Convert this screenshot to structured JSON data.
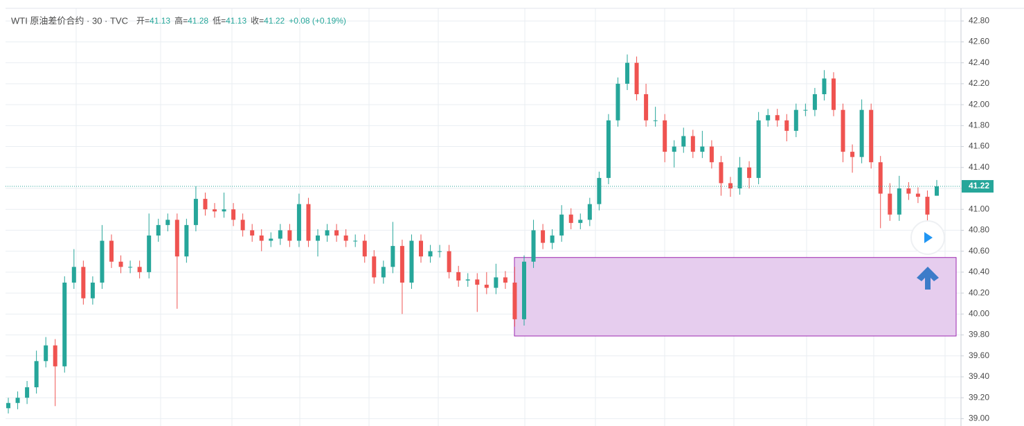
{
  "chart_data": {
    "type": "candlestick",
    "title": "WTI 原油差价合约 · 30 · TVC",
    "legend": [
      {
        "label": "开=",
        "value": 41.13
      },
      {
        "label": "高=",
        "value": 41.28
      },
      {
        "label": "低=",
        "value": 41.13
      },
      {
        "label": "收=",
        "value": 41.22
      }
    ],
    "change": "+0.08 (+0.19%)",
    "up_color": "#26a69a",
    "down_color": "#ef5350",
    "last_price": 41.22,
    "zone": {
      "low": 39.79,
      "high": 40.54,
      "color": "#e6cdee"
    },
    "ylim": [
      38.93,
      43.0
    ],
    "yticks": [
      {
        "value": 39,
        "label": "39.00"
      },
      {
        "value": 39.2,
        "label": "39.20"
      },
      {
        "value": 39.4,
        "label": "39.40"
      },
      {
        "value": 39.6,
        "label": "39.60"
      },
      {
        "value": 39.8,
        "label": "39.80"
      },
      {
        "value": 40,
        "label": "40.00"
      },
      {
        "value": 40.2,
        "label": "40.20"
      },
      {
        "value": 40.4,
        "label": "40.40"
      },
      {
        "value": 40.6,
        "label": "40.60"
      },
      {
        "value": 40.8,
        "label": "40.80"
      },
      {
        "value": 41,
        "label": "41.00"
      },
      {
        "value": 41.2,
        "label": "41.20"
      },
      {
        "value": 41.4,
        "label": "41.40"
      },
      {
        "value": 41.6,
        "label": "41.60"
      },
      {
        "value": 41.8,
        "label": "41.80"
      },
      {
        "value": 42,
        "label": "42.00"
      },
      {
        "value": 42.2,
        "label": "42.20"
      },
      {
        "value": 42.4,
        "label": "42.40"
      },
      {
        "value": 42.6,
        "label": "42.60"
      },
      {
        "value": 42.8,
        "label": "42.80"
      }
    ],
    "grid": true,
    "ohlc": [
      [
        39.1,
        39.2,
        39.05,
        39.15
      ],
      [
        39.15,
        39.26,
        39.09,
        39.2
      ],
      [
        39.2,
        39.36,
        39.14,
        39.3
      ],
      [
        39.3,
        39.65,
        39.24,
        39.55
      ],
      [
        39.55,
        39.78,
        39.49,
        39.7
      ],
      [
        39.7,
        39.76,
        39.12,
        39.5
      ],
      [
        39.5,
        40.36,
        39.44,
        40.3
      ],
      [
        40.3,
        40.62,
        40.24,
        40.45
      ],
      [
        40.45,
        40.51,
        40.09,
        40.15
      ],
      [
        40.15,
        40.36,
        40.09,
        40.3
      ],
      [
        40.3,
        40.85,
        40.24,
        40.7
      ],
      [
        40.7,
        40.76,
        40.44,
        40.5
      ],
      [
        40.5,
        40.56,
        40.39,
        40.45
      ],
      [
        40.45,
        40.51,
        40.39,
        40.45
      ],
      [
        40.45,
        40.51,
        40.34,
        40.4
      ],
      [
        40.4,
        40.96,
        40.34,
        40.75
      ],
      [
        40.75,
        40.91,
        40.69,
        40.85
      ],
      [
        40.85,
        40.96,
        40.79,
        40.9
      ],
      [
        40.9,
        40.96,
        40.05,
        40.55
      ],
      [
        40.55,
        40.91,
        40.49,
        40.85
      ],
      [
        40.85,
        41.22,
        40.79,
        41.1
      ],
      [
        41.1,
        41.16,
        40.94,
        41.0
      ],
      [
        41.0,
        41.06,
        40.92,
        40.98
      ],
      [
        40.98,
        41.16,
        40.92,
        41.0
      ],
      [
        41.0,
        41.06,
        40.84,
        40.9
      ],
      [
        40.9,
        40.96,
        40.74,
        40.8
      ],
      [
        40.8,
        40.86,
        40.69,
        40.75
      ],
      [
        40.75,
        40.81,
        40.6,
        40.7
      ],
      [
        40.7,
        40.78,
        40.64,
        40.72
      ],
      [
        40.72,
        40.86,
        40.66,
        40.8
      ],
      [
        40.8,
        40.86,
        40.64,
        40.7
      ],
      [
        40.7,
        41.15,
        40.64,
        41.05
      ],
      [
        41.05,
        41.11,
        40.64,
        40.7
      ],
      [
        40.7,
        40.81,
        40.55,
        40.75
      ],
      [
        40.75,
        40.86,
        40.69,
        40.8
      ],
      [
        40.8,
        40.86,
        40.69,
        40.75
      ],
      [
        40.75,
        40.81,
        40.64,
        40.7
      ],
      [
        40.7,
        40.76,
        40.64,
        40.7
      ],
      [
        40.7,
        40.76,
        40.49,
        40.55
      ],
      [
        40.55,
        40.61,
        40.29,
        40.35
      ],
      [
        40.35,
        40.51,
        40.29,
        40.45
      ],
      [
        40.45,
        40.88,
        40.39,
        40.65
      ],
      [
        40.65,
        40.71,
        40.0,
        40.3
      ],
      [
        40.3,
        40.76,
        40.24,
        40.7
      ],
      [
        40.7,
        40.76,
        40.49,
        40.55
      ],
      [
        40.55,
        40.66,
        40.49,
        40.6
      ],
      [
        40.6,
        40.66,
        40.54,
        40.6
      ],
      [
        40.6,
        40.66,
        40.34,
        40.4
      ],
      [
        40.4,
        40.46,
        40.26,
        40.32
      ],
      [
        40.32,
        40.39,
        40.26,
        40.33
      ],
      [
        40.33,
        40.39,
        40.02,
        40.28
      ],
      [
        40.28,
        40.4,
        40.19,
        40.25
      ],
      [
        40.25,
        40.48,
        40.19,
        40.35
      ],
      [
        40.35,
        40.41,
        40.24,
        40.3
      ],
      [
        40.3,
        40.45,
        39.88,
        39.95
      ],
      [
        39.95,
        40.56,
        39.89,
        40.5
      ],
      [
        40.5,
        40.9,
        40.44,
        40.8
      ],
      [
        40.8,
        40.86,
        40.62,
        40.68
      ],
      [
        40.68,
        40.81,
        40.62,
        40.75
      ],
      [
        40.75,
        41.04,
        40.69,
        40.95
      ],
      [
        40.95,
        41.01,
        40.81,
        40.87
      ],
      [
        40.87,
        40.96,
        40.81,
        40.9
      ],
      [
        40.9,
        41.11,
        40.84,
        41.05
      ],
      [
        41.05,
        41.36,
        40.99,
        41.3
      ],
      [
        41.3,
        41.91,
        41.24,
        41.85
      ],
      [
        41.85,
        42.26,
        41.79,
        42.2
      ],
      [
        42.2,
        42.48,
        42.14,
        42.4
      ],
      [
        42.4,
        42.46,
        42.04,
        42.1
      ],
      [
        42.1,
        42.2,
        41.79,
        41.85
      ],
      [
        41.85,
        41.98,
        41.79,
        41.85
      ],
      [
        41.85,
        41.91,
        41.45,
        41.55
      ],
      [
        41.55,
        41.66,
        41.4,
        41.6
      ],
      [
        41.6,
        41.78,
        41.54,
        41.7
      ],
      [
        41.7,
        41.76,
        41.49,
        41.55
      ],
      [
        41.55,
        41.75,
        41.49,
        41.6
      ],
      [
        41.6,
        41.66,
        41.39,
        41.45
      ],
      [
        41.45,
        41.51,
        41.13,
        41.25
      ],
      [
        41.25,
        41.31,
        41.12,
        41.2
      ],
      [
        41.2,
        41.5,
        41.14,
        41.4
      ],
      [
        41.4,
        41.46,
        41.2,
        41.3
      ],
      [
        41.3,
        41.93,
        41.24,
        41.85
      ],
      [
        41.85,
        41.96,
        41.79,
        41.9
      ],
      [
        41.9,
        41.96,
        41.79,
        41.85
      ],
      [
        41.85,
        41.91,
        41.65,
        41.75
      ],
      [
        41.75,
        42.01,
        41.69,
        41.95
      ],
      [
        41.95,
        42.01,
        41.89,
        41.95
      ],
      [
        41.95,
        42.16,
        41.89,
        42.1
      ],
      [
        42.1,
        42.33,
        42.04,
        42.25
      ],
      [
        42.25,
        42.31,
        41.89,
        41.95
      ],
      [
        41.95,
        42.01,
        41.45,
        41.55
      ],
      [
        41.55,
        41.62,
        41.35,
        41.5
      ],
      [
        41.5,
        42.05,
        41.44,
        41.95
      ],
      [
        41.95,
        42.01,
        41.39,
        41.45
      ],
      [
        41.45,
        41.51,
        40.82,
        41.15
      ],
      [
        41.15,
        41.25,
        40.89,
        40.95
      ],
      [
        40.95,
        41.32,
        40.89,
        41.2
      ],
      [
        41.2,
        41.26,
        41.09,
        41.15
      ],
      [
        41.15,
        41.21,
        41.06,
        41.12
      ],
      [
        41.12,
        41.18,
        40.88,
        40.95
      ],
      [
        41.13,
        41.28,
        41.13,
        41.22
      ]
    ]
  }
}
